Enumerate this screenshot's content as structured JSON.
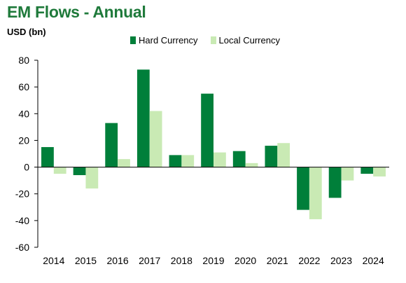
{
  "colors": {
    "hard": "#007f3a",
    "local": "#c9eab4"
  },
  "chart_data": {
    "type": "bar",
    "title": "EM Flows - Annual",
    "ylabel": "USD (bn)",
    "categories": [
      "2014",
      "2015",
      "2016",
      "2017",
      "2018",
      "2019",
      "2020",
      "2021",
      "2022",
      "2023",
      "2024"
    ],
    "series": [
      {
        "name": "Hard Currency",
        "values": [
          15,
          -6,
          33,
          73,
          9,
          55,
          12,
          16,
          -32,
          -23,
          -5
        ]
      },
      {
        "name": "Local Currency",
        "values": [
          -5,
          -16,
          6,
          42,
          9,
          11,
          3,
          18,
          -39,
          -10,
          -7
        ]
      }
    ],
    "ylim": [
      -60,
      80
    ],
    "yticks": [
      80,
      60,
      40,
      20,
      0,
      -20,
      -40,
      -60
    ],
    "legend": "top"
  }
}
